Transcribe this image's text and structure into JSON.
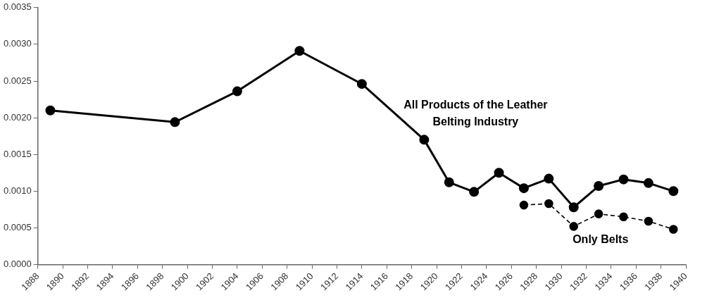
{
  "chart_data": {
    "type": "line",
    "x": [
      1889,
      1899,
      1904,
      1909,
      1914,
      1919,
      1921,
      1923,
      1925,
      1927,
      1929,
      1931,
      1933,
      1935,
      1937,
      1939
    ],
    "series": [
      {
        "name": "All Products of the Leather Belting Industry",
        "color": "#000000",
        "line_style": "solid",
        "values": [
          0.0021,
          0.00194,
          0.00236,
          0.00291,
          0.00246,
          0.0017,
          0.00112,
          0.00099,
          0.00125,
          0.00104,
          0.00117,
          0.00078,
          0.00107,
          0.00116,
          0.00111,
          0.001
        ]
      },
      {
        "name": "Only Belts",
        "color": "#000000",
        "line_style": "dashed",
        "x": [
          1927,
          1929,
          1931,
          1933,
          1935,
          1937,
          1939
        ],
        "values": [
          0.00081,
          0.00083,
          0.00052,
          0.00069,
          0.00065,
          0.00059,
          0.00048
        ]
      }
    ],
    "xlim": [
      1888,
      1940
    ],
    "xticks": [
      1888,
      1890,
      1892,
      1894,
      1896,
      1898,
      1900,
      1902,
      1904,
      1906,
      1908,
      1910,
      1912,
      1914,
      1916,
      1918,
      1920,
      1922,
      1924,
      1926,
      1928,
      1930,
      1932,
      1934,
      1936,
      1938,
      1940
    ],
    "ylim": [
      0,
      0.0035
    ],
    "yticks": [
      {
        "value": 0,
        "label": "0.0000"
      },
      {
        "value": 0.0005,
        "label": "0.0005"
      },
      {
        "value": 0.001,
        "label": "0.0010"
      },
      {
        "value": 0.0015,
        "label": "0.0015"
      },
      {
        "value": 0.002,
        "label": "0.0020"
      },
      {
        "value": 0.0025,
        "label": "0.0025"
      },
      {
        "value": 0.003,
        "label": "0.0030"
      },
      {
        "value": 0.0035,
        "label": "0.0035"
      }
    ],
    "grid": false,
    "legend": false,
    "marker": "circle"
  }
}
